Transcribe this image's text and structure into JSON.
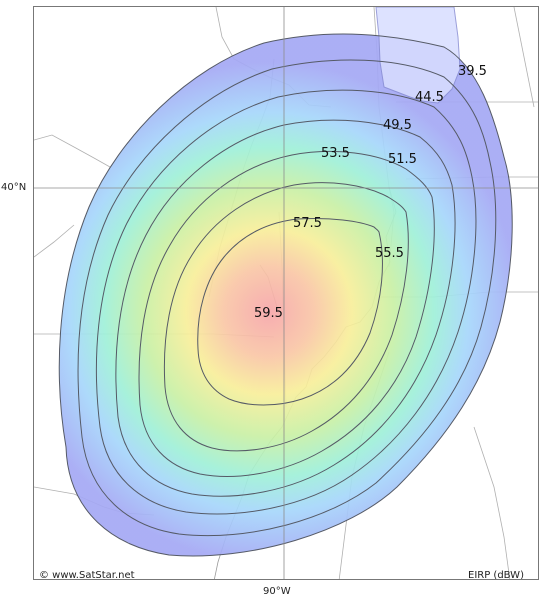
{
  "map": {
    "contour_labels": [
      "39.5",
      "44.5",
      "49.5",
      "51.5",
      "53.5",
      "55.5",
      "57.5",
      "59.5"
    ],
    "lat_label": "40°N",
    "lon_label": "90°W",
    "copyright": "© www.SatStar.net",
    "units_label": "EIRP (dBW)"
  }
}
